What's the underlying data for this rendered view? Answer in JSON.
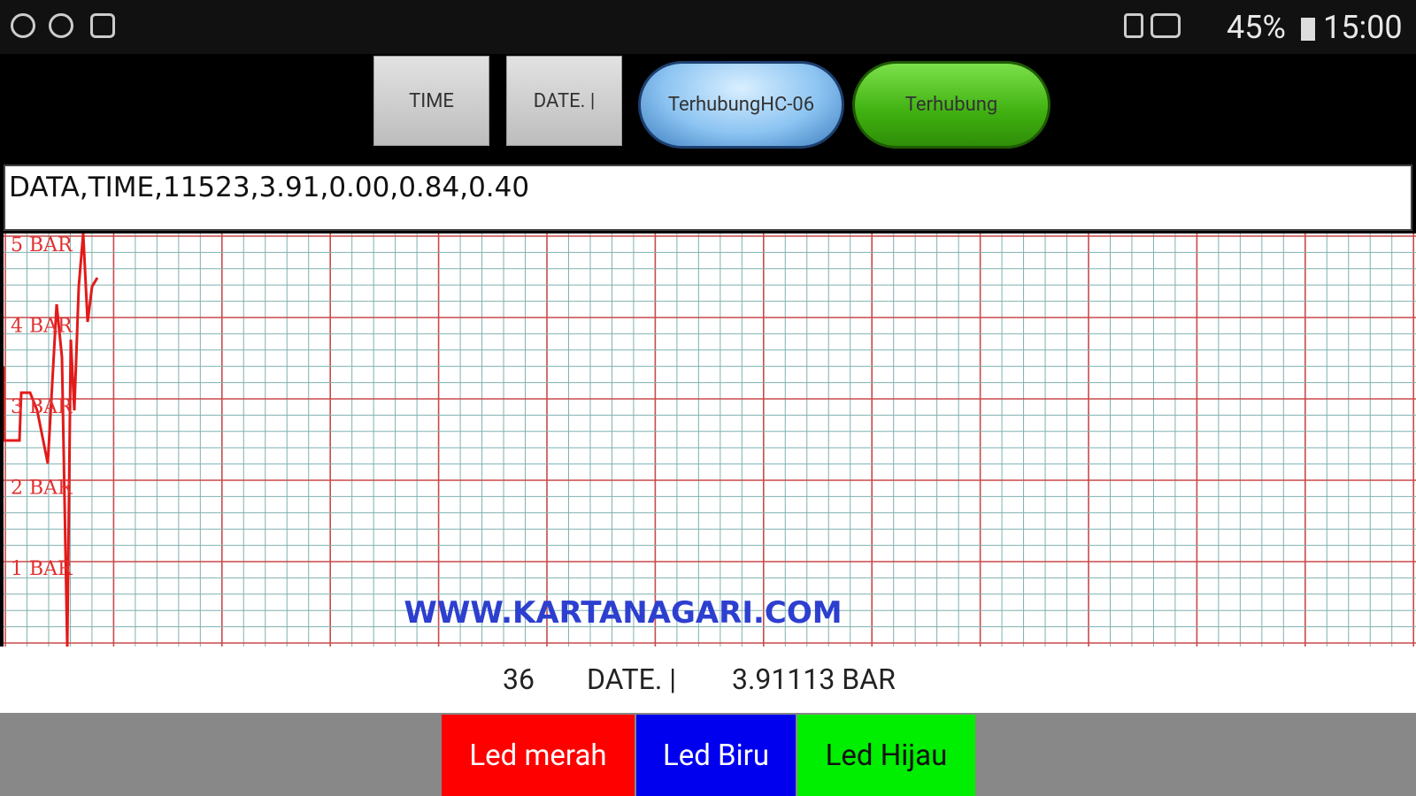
{
  "status_bar": {
    "battery": "45%",
    "time": "15:00"
  },
  "toolbar": {
    "buttons": [
      "TIME",
      "DATE. |",
      "TerhubungHC-06",
      "Terhubung"
    ]
  },
  "data_field": {
    "text": "DATA,TIME,11523,3.91,0.00,0.84,0.40"
  },
  "graph": {
    "y_labels": [
      "5 BAR",
      "4 BAR",
      "3 BAR",
      "2 BAR",
      "1 BAR"
    ],
    "watermark": "WWW.KARTANAGARI.COM"
  },
  "readout": {
    "count": "36",
    "date": "DATE. |",
    "pressure": "3.91113 BAR"
  },
  "led_buttons": [
    "Led merah",
    "Led Biru",
    "Led Hijau"
  ]
}
